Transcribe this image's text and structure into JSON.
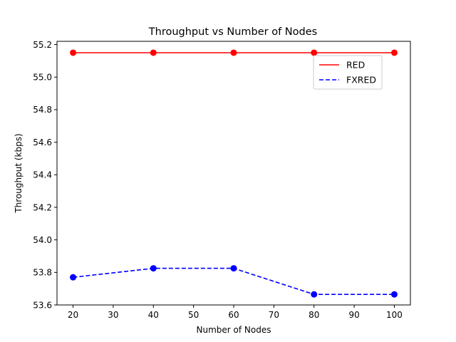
{
  "chart_data": {
    "type": "line",
    "title": "Throughput vs Number of Nodes",
    "xlabel": "Number of Nodes",
    "ylabel": "Throughput (kbps)",
    "x": [
      20,
      40,
      60,
      80,
      100
    ],
    "xlim": [
      16,
      104
    ],
    "ylim": [
      53.6,
      55.22
    ],
    "xticks": [
      20,
      30,
      40,
      50,
      60,
      70,
      80,
      90,
      100
    ],
    "yticks": [
      "53.6",
      "53.8",
      "54.0",
      "54.2",
      "54.4",
      "54.6",
      "54.8",
      "55.0",
      "55.2"
    ],
    "grid": false,
    "legend_position": "upper-right",
    "series": [
      {
        "name": "RED",
        "values": [
          55.15,
          55.15,
          55.15,
          55.15,
          55.15
        ],
        "color": "#ff0000",
        "linestyle": "solid",
        "marker": "circle"
      },
      {
        "name": "FXRED",
        "values": [
          53.77,
          53.825,
          53.825,
          53.665,
          53.665
        ],
        "color": "#0000ff",
        "linestyle": "dashed",
        "marker": "circle"
      }
    ]
  }
}
